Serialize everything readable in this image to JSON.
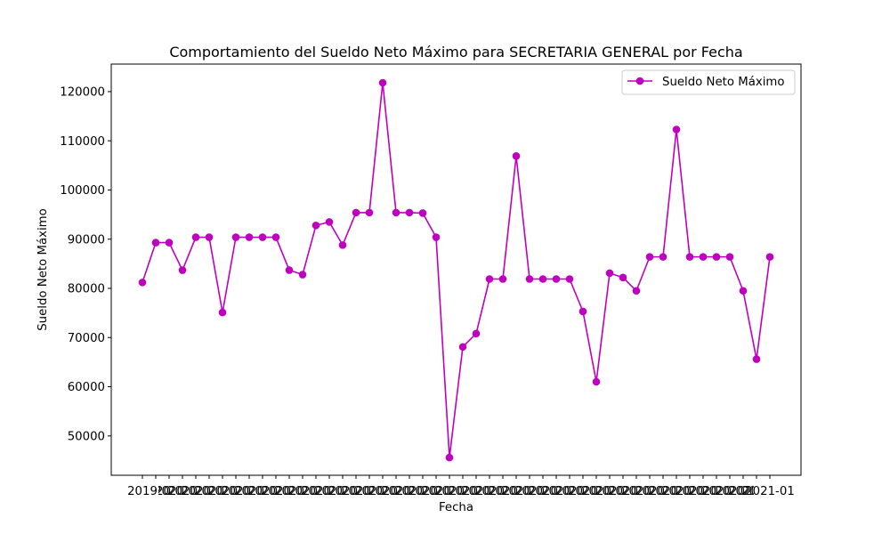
{
  "chart_data": {
    "type": "line",
    "title": "Comportamiento del Sueldo Neto Máximo para SECRETARIA GENERAL por Fecha",
    "xlabel": "Fecha",
    "ylabel": "Sueldo Neto Máximo",
    "ylim": [
      42000,
      125600
    ],
    "yticks": [
      50000,
      60000,
      70000,
      80000,
      90000,
      100000,
      110000,
      120000
    ],
    "xtick_labels_visible": "overlapping date labels beginning with \"2019\" and ending with \"2021-01\"",
    "x_tick_first_label": "2019",
    "x_tick_last_label": "2021-01",
    "legend_position": "upper right",
    "grid": false,
    "series": [
      {
        "name": "Sueldo Neto Máximo",
        "color": "#bf00bf",
        "marker": "circle",
        "values": [
          81200,
          89300,
          89300,
          83700,
          90400,
          90400,
          75100,
          90400,
          90400,
          90400,
          90400,
          83700,
          82800,
          92800,
          93500,
          88800,
          95400,
          95400,
          121800,
          95400,
          95400,
          95300,
          90400,
          45600,
          68100,
          70800,
          81900,
          81900,
          106900,
          81900,
          81900,
          81900,
          81900,
          75300,
          61000,
          83100,
          82200,
          79500,
          86400,
          86400,
          112300,
          86400,
          86400,
          86400,
          86400,
          79500,
          65600,
          86400
        ]
      }
    ]
  }
}
